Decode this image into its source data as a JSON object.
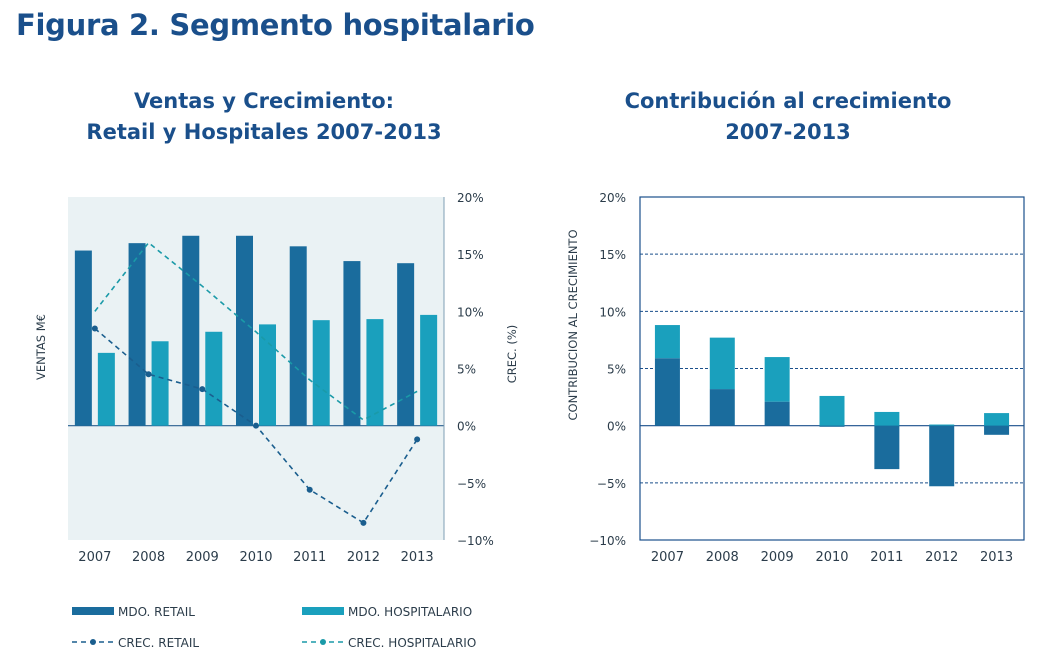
{
  "figure_title": "Figura 2. Segmento hospitalario",
  "colors": {
    "title": "#1a4f8b",
    "retail": "#1a6c9d",
    "hospital": "#1aa0bd",
    "plot_bg": "#eaf2f4",
    "frame": "#1a4f8b"
  },
  "chart_data": [
    {
      "type": "bar+line",
      "title_lines": [
        "Ventas y Crecimiento:",
        "Retail y Hospitales 2007-2013"
      ],
      "categories": [
        "2007",
        "2008",
        "2009",
        "2010",
        "2011",
        "2012",
        "2013"
      ],
      "ylabel": "VENTAS M€",
      "y2label": "CREC. (%)",
      "y2_ticks": [
        "20%",
        "15%",
        "10%",
        "5%",
        "0%",
        "−5%",
        "−10%"
      ],
      "y2lim": [
        -10,
        20
      ],
      "bars": [
        {
          "name": "MDO. RETAIL",
          "values": [
            16.6,
            17.3,
            18.0,
            18.0,
            17.0,
            15.6,
            15.4
          ],
          "color": "#1a6c9d"
        },
        {
          "name": "MDO. HOSPITALARIO",
          "values": [
            6.9,
            8.0,
            8.9,
            9.6,
            10.0,
            10.1,
            10.5
          ],
          "color": "#1aa0bd"
        }
      ],
      "lines": [
        {
          "name": "CREC. RETAIL",
          "values": [
            8.5,
            4.5,
            3.2,
            0.0,
            -5.6,
            -8.5,
            -1.2
          ],
          "color": "#1a5e8e",
          "marker": true
        },
        {
          "name": "CREC. HOSPITALARIO",
          "values": [
            10.0,
            16.0,
            12.2,
            8.2,
            4.0,
            0.5,
            3.0
          ],
          "color": "#1a9aa8",
          "marker": false
        }
      ],
      "legend": [
        {
          "name": "MDO. RETAIL",
          "kind": "bar",
          "color": "#1a6c9d"
        },
        {
          "name": "MDO. HOSPITALARIO",
          "kind": "bar",
          "color": "#1aa0bd"
        },
        {
          "name": "CREC. RETAIL",
          "kind": "line",
          "color": "#1a5e8e"
        },
        {
          "name": "CREC. HOSPITALARIO",
          "kind": "line",
          "color": "#1a9aa8"
        }
      ],
      "legend_position": "bottom"
    },
    {
      "type": "stacked-bar",
      "title_lines": [
        "Contribución al crecimiento",
        "2007-2013"
      ],
      "categories": [
        "2007",
        "2008",
        "2009",
        "2010",
        "2011",
        "2012",
        "2013"
      ],
      "ylabel": "CONTRIBUCION AL CRECIMIENTO",
      "y_ticks": [
        "20%",
        "15%",
        "10%",
        "5%",
        "0%",
        "−5%",
        "−10%"
      ],
      "ylim": [
        -10,
        20
      ],
      "gridlines": [
        15,
        10,
        5,
        -5
      ],
      "series": [
        {
          "name": "Retail",
          "values": [
            5.9,
            3.2,
            2.1,
            -0.1,
            -3.8,
            -5.3,
            -0.8
          ],
          "color": "#1a6c9d"
        },
        {
          "name": "Hospitalario",
          "values": [
            2.9,
            4.5,
            3.9,
            2.6,
            1.2,
            0.1,
            1.1
          ],
          "color": "#1aa0bd"
        }
      ]
    }
  ]
}
